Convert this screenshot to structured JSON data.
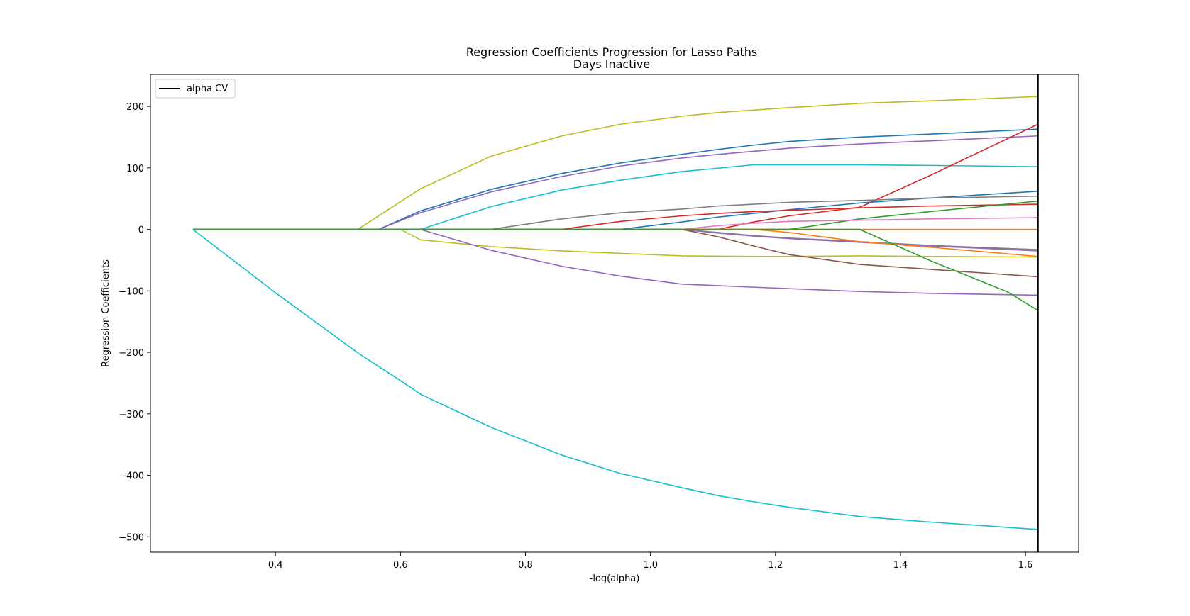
{
  "chart_data": {
    "type": "line",
    "title": "Regression Coefficients Progression for Lasso Paths",
    "subtitle": "Days Inactive",
    "xlabel": "-log(alpha)",
    "ylabel": "Regression Coefficients",
    "xlim": [
      0.2,
      1.685
    ],
    "ylim": [
      -525,
      252
    ],
    "xticks": [
      0.4,
      0.6,
      0.8,
      1.0,
      1.2,
      1.4,
      1.6
    ],
    "xtick_labels": [
      "0.4",
      "0.6",
      "0.8",
      "1.0",
      "1.2",
      "1.4",
      "1.6"
    ],
    "yticks": [
      200,
      100,
      0,
      -100,
      -200,
      -300,
      -400,
      -500
    ],
    "ytick_labels": [
      "200",
      "100",
      "0",
      "−100",
      "−200",
      "−300",
      "−400",
      "−500"
    ],
    "grid": false,
    "legend": {
      "position": "top-left",
      "entries": [
        {
          "label": "alpha CV",
          "color": "#000000"
        }
      ]
    },
    "vline": {
      "x": 1.62,
      "label": "alpha CV",
      "color": "#000000"
    },
    "series": [
      {
        "color": "#bcbd22",
        "x": [
          0.268,
          0.532,
          0.6,
          0.632,
          0.745,
          0.858,
          0.952,
          1.05,
          1.108,
          1.165,
          1.222,
          1.335,
          1.448,
          1.62
        ],
        "y": [
          0,
          0,
          45,
          66,
          119,
          152,
          171,
          184,
          190,
          194,
          198,
          205,
          209,
          216
        ]
      },
      {
        "color": "#1f77b4",
        "x": [
          0.268,
          0.565,
          0.632,
          0.745,
          0.858,
          0.952,
          1.05,
          1.108,
          1.165,
          1.222,
          1.335,
          1.448,
          1.62
        ],
        "y": [
          0,
          0,
          30,
          65,
          91,
          108,
          122,
          130,
          137,
          143,
          150,
          155,
          163
        ]
      },
      {
        "color": "#9467bd",
        "x": [
          0.268,
          0.565,
          0.632,
          0.745,
          0.858,
          0.952,
          1.05,
          1.108,
          1.165,
          1.222,
          1.335,
          1.448,
          1.62
        ],
        "y": [
          0,
          0,
          27,
          61,
          86,
          103,
          116,
          122,
          127,
          132,
          139,
          144,
          152
        ]
      },
      {
        "color": "#17becf",
        "x": [
          0.268,
          0.632,
          0.745,
          0.858,
          0.952,
          1.05,
          1.165,
          1.335,
          1.448,
          1.62
        ],
        "y": [
          0,
          0,
          37,
          64,
          80,
          94,
          105,
          105,
          104,
          102
        ]
      },
      {
        "color": "#d62728",
        "x": [
          0.268,
          1.108,
          1.165,
          1.222,
          1.335,
          1.448,
          1.62
        ],
        "y": [
          0,
          0,
          12,
          22,
          36,
          88,
          171
        ]
      },
      {
        "color": "#1f77b4",
        "x": [
          0.268,
          0.952,
          1.05,
          1.108,
          1.165,
          1.222,
          1.335,
          1.448,
          1.62
        ],
        "y": [
          0,
          0,
          12,
          20,
          26,
          32,
          43,
          51,
          62
        ]
      },
      {
        "color": "#7f7f7f",
        "x": [
          0.268,
          0.745,
          0.858,
          0.952,
          1.05,
          1.108,
          1.165,
          1.222,
          1.335,
          1.448,
          1.62
        ],
        "y": [
          0,
          0,
          17,
          27,
          33,
          38,
          41,
          44,
          47,
          51,
          54
        ]
      },
      {
        "color": "#d62728",
        "x": [
          0.268,
          0.858,
          0.952,
          1.05,
          1.108,
          1.165,
          1.222,
          1.335,
          1.448,
          1.62
        ],
        "y": [
          0,
          0,
          13,
          22,
          26,
          29,
          31,
          35,
          38,
          41
        ]
      },
      {
        "color": "#2ca02c",
        "x": [
          0.268,
          1.222,
          1.335,
          1.448,
          1.62
        ],
        "y": [
          0,
          0,
          17,
          29,
          46
        ]
      },
      {
        "color": "#e377c2",
        "x": [
          0.268,
          1.05,
          1.108,
          1.165,
          1.222,
          1.335,
          1.448,
          1.62
        ],
        "y": [
          0,
          0,
          6,
          10,
          13,
          15,
          17,
          19
        ]
      },
      {
        "color": "#ff7f0e",
        "x": [
          0.268,
          1.62
        ],
        "y": [
          0,
          0
        ]
      },
      {
        "color": "#7f7f7f",
        "x": [
          0.268,
          1.05,
          1.108,
          1.165,
          1.222,
          1.335,
          1.448,
          1.62
        ],
        "y": [
          0,
          0,
          -5,
          -10,
          -14,
          -20,
          -26,
          -33
        ]
      },
      {
        "color": "#9467bd",
        "x": [
          0.268,
          1.05,
          1.108,
          1.165,
          1.222,
          1.335,
          1.448,
          1.62
        ],
        "y": [
          0,
          0,
          -6,
          -11,
          -15,
          -21,
          -27,
          -35
        ]
      },
      {
        "color": "#ff7f0e",
        "x": [
          0.268,
          1.165,
          1.222,
          1.335,
          1.448,
          1.62
        ],
        "y": [
          0,
          0,
          -5,
          -20,
          -29,
          -44
        ]
      },
      {
        "color": "#bcbd22",
        "x": [
          0.268,
          0.6,
          0.632,
          0.745,
          0.858,
          0.952,
          1.05,
          1.165,
          1.222,
          1.335,
          1.448,
          1.62
        ],
        "y": [
          0,
          0,
          -17,
          -28,
          -35,
          -39,
          -43,
          -44,
          -44,
          -43,
          -44,
          -45
        ]
      },
      {
        "color": "#8c564b",
        "x": [
          0.268,
          1.05,
          1.108,
          1.165,
          1.222,
          1.335,
          1.448,
          1.62
        ],
        "y": [
          0,
          0,
          -12,
          -27,
          -41,
          -57,
          -65,
          -77
        ]
      },
      {
        "color": "#9467bd",
        "x": [
          0.268,
          0.632,
          0.745,
          0.858,
          0.952,
          1.05,
          1.165,
          1.335,
          1.448,
          1.62
        ],
        "y": [
          0,
          0,
          -34,
          -60,
          -76,
          -89,
          -94,
          -101,
          -104,
          -107
        ]
      },
      {
        "color": "#2ca02c",
        "x": [
          0.268,
          1.335,
          1.448,
          1.572,
          1.62
        ],
        "y": [
          0,
          0,
          -51,
          -102,
          -132
        ]
      },
      {
        "color": "#17becf",
        "x": [
          0.268,
          0.4,
          0.532,
          0.6,
          0.632,
          0.745,
          0.858,
          0.952,
          1.05,
          1.108,
          1.165,
          1.222,
          1.335,
          1.448,
          1.62
        ],
        "y": [
          0,
          -103,
          -201,
          -246,
          -268,
          -322,
          -367,
          -397,
          -420,
          -433,
          -443,
          -452,
          -467,
          -476,
          -488
        ]
      },
      {
        "color": "#2ca02c",
        "x": [
          0.268,
          1.05
        ],
        "y": [
          0,
          0
        ]
      }
    ]
  }
}
